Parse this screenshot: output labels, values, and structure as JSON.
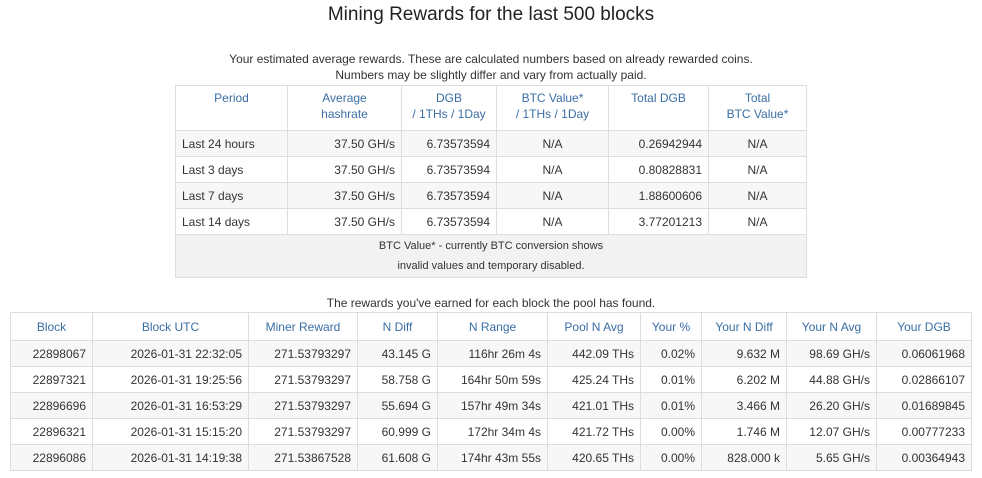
{
  "header": {
    "title": "Mining Rewards for the last 500 blocks",
    "subtitle": [
      "Your estimated average rewards. These are calculated numbers based on already rewarded coins.",
      "Numbers may be slightly differ and vary from actually paid."
    ]
  },
  "estimates": {
    "columns": [
      [
        "Period"
      ],
      [
        "Average",
        "hashrate"
      ],
      [
        "DGB",
        "/ 1THs / 1Day"
      ],
      [
        "BTC Value*",
        "/ 1THs / 1Day"
      ],
      [
        "Total DGB"
      ],
      [
        "Total",
        "BTC Value*"
      ]
    ],
    "rows": [
      [
        "Last 24 hours",
        "37.50 GH/s",
        "6.73573594",
        "N/A",
        "0.26942944",
        "N/A"
      ],
      [
        "Last 3 days",
        "37.50 GH/s",
        "6.73573594",
        "N/A",
        "0.80828831",
        "N/A"
      ],
      [
        "Last 7 days",
        "37.50 GH/s",
        "6.73573594",
        "N/A",
        "1.88600606",
        "N/A"
      ],
      [
        "Last 14 days",
        "37.50 GH/s",
        "6.73573594",
        "N/A",
        "3.77201213",
        "N/A"
      ]
    ],
    "note": [
      "BTC Value* - currently BTC conversion shows",
      "invalid values and temporary disabled."
    ]
  },
  "blocks": {
    "caption": "The rewards you've earned for each block the pool has found.",
    "columns": [
      "Block",
      "Block UTC",
      "Miner Reward",
      "N Diff",
      "N Range",
      "Pool N Avg",
      "Your %",
      "Your N Diff",
      "Your N Avg",
      "Your DGB"
    ],
    "rows": [
      [
        "22898067",
        "2026-01-31 22:32:05",
        "271.53793297",
        "43.145 G",
        "116hr 26m 4s",
        "442.09 THs",
        "0.02%",
        "9.632 M",
        "98.69 GH/s",
        "0.06061968"
      ],
      [
        "22897321",
        "2026-01-31 19:25:56",
        "271.53793297",
        "58.758 G",
        "164hr 50m 59s",
        "425.24 THs",
        "0.01%",
        "6.202 M",
        "44.88 GH/s",
        "0.02866107"
      ],
      [
        "22896696",
        "2026-01-31 16:53:29",
        "271.53793297",
        "55.694 G",
        "157hr 49m 34s",
        "421.01 THs",
        "0.01%",
        "3.466 M",
        "26.20 GH/s",
        "0.01689845"
      ],
      [
        "22896321",
        "2026-01-31 15:15:20",
        "271.53793297",
        "60.999 G",
        "172hr 34m 4s",
        "421.72 THs",
        "0.00%",
        "1.746 M",
        "12.07 GH/s",
        "0.00777233"
      ],
      [
        "22896086",
        "2026-01-31 14:19:38",
        "271.53867528",
        "61.608 G",
        "174hr 43m 55s",
        "420.65 THs",
        "0.00%",
        "828.000 k",
        "5.65 GH/s",
        "0.00364943"
      ]
    ]
  }
}
